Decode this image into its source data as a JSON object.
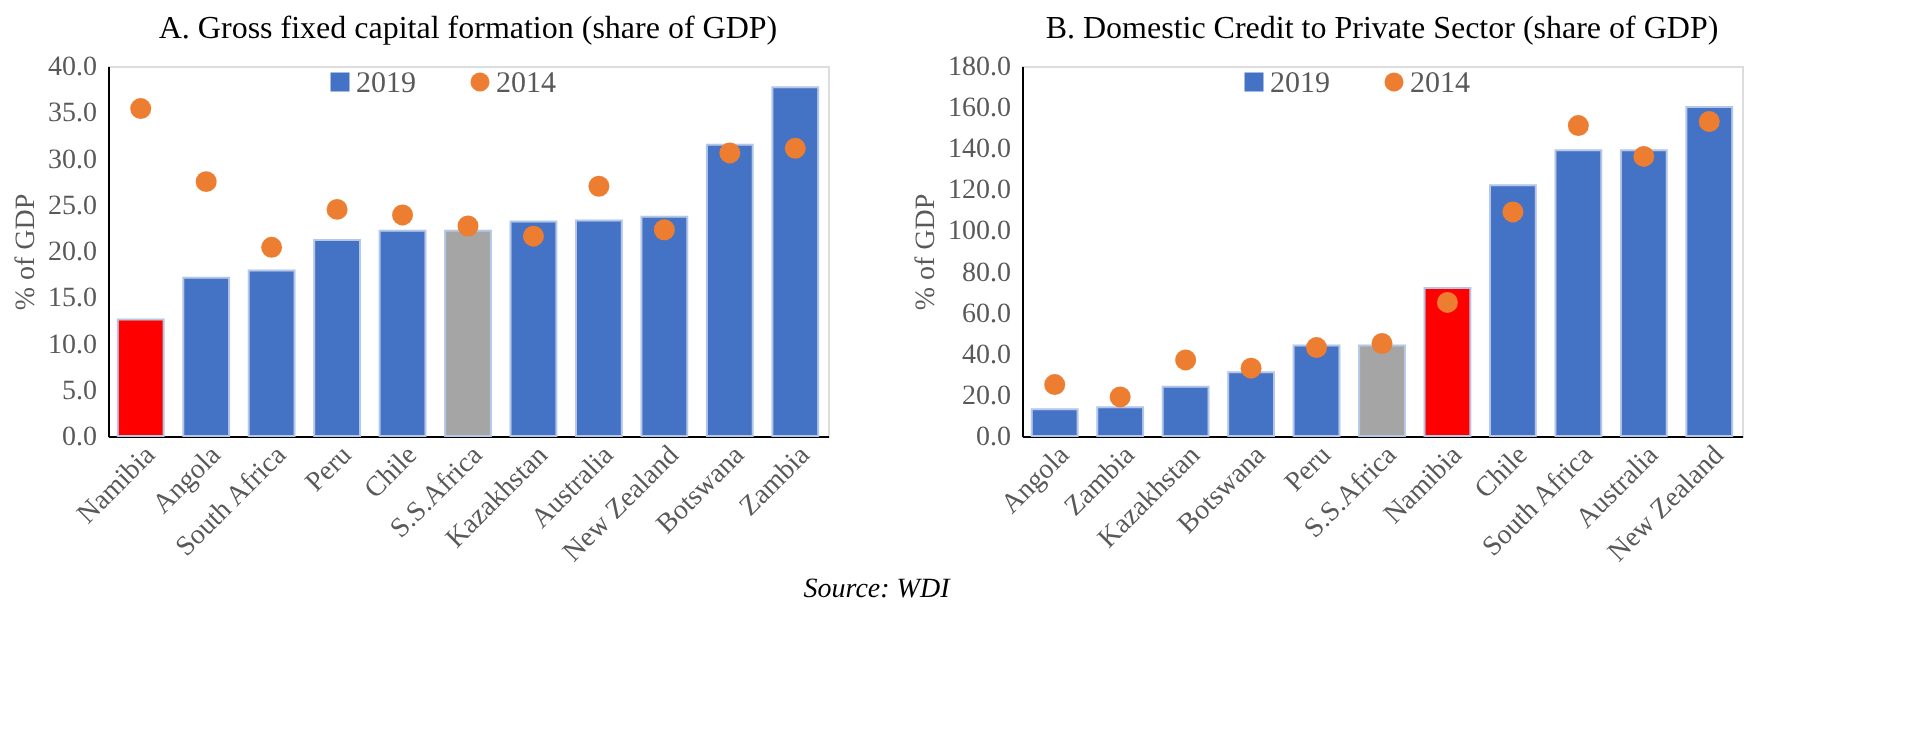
{
  "chart_data": [
    {
      "type": "bar",
      "title": "A.    Gross fixed capital formation (share of GDP)",
      "ylabel": "% of GDP",
      "categories": [
        "Namibia",
        "Angola",
        "South Africa",
        "Peru",
        "Chile",
        "S.S.Africa",
        "Kazakhstan",
        "Australia",
        "New Zealand",
        "Botswana",
        "Zambia"
      ],
      "series": [
        {
          "name": "2019",
          "color": "#4472c4",
          "colors": [
            "#ff0000",
            "#4472c4",
            "#4472c4",
            "#4472c4",
            "#4472c4",
            "#a5a5a5",
            "#4472c4",
            "#4472c4",
            "#4472c4",
            "#4472c4",
            "#4472c4"
          ],
          "values": [
            12.6,
            17.1,
            17.9,
            21.2,
            22.2,
            22.2,
            23.2,
            23.3,
            23.7,
            31.5,
            37.7
          ]
        },
        {
          "name": "2014",
          "type": "scatter",
          "color": "#ed7d31",
          "values": [
            35.4,
            27.5,
            20.4,
            24.5,
            23.9,
            22.7,
            21.6,
            27.0,
            22.3,
            30.6,
            31.1
          ]
        }
      ],
      "ylim": [
        0,
        40
      ],
      "yticks": [
        {
          "value": 0,
          "label": "0.0"
        },
        {
          "value": 5,
          "label": "5.0"
        },
        {
          "value": 10,
          "label": "10.0"
        },
        {
          "value": 15,
          "label": "15.0"
        },
        {
          "value": 20,
          "label": "20.0"
        },
        {
          "value": 25,
          "label": "25.0"
        },
        {
          "value": 30,
          "label": "30.0"
        },
        {
          "value": 35,
          "label": "35.0"
        },
        {
          "value": 40,
          "label": "40.0"
        }
      ],
      "legend": "top",
      "grid": false,
      "annotations": [
        "Source: WDI"
      ]
    },
    {
      "type": "bar",
      "title": "B. Domestic Credit to Private Sector (share of GDP)",
      "ylabel": "% of GDP",
      "categories": [
        "Angola",
        "Zambia",
        "Kazakhstan",
        "Botswana",
        "Peru",
        "S.S.Africa",
        "Namibia",
        "Chile",
        "South Africa",
        "Australia",
        "New Zealand"
      ],
      "series": [
        {
          "name": "2019",
          "color": "#4472c4",
          "colors": [
            "#4472c4",
            "#4472c4",
            "#4472c4",
            "#4472c4",
            "#4472c4",
            "#a5a5a5",
            "#ff0000",
            "#4472c4",
            "#4472c4",
            "#4472c4",
            "#4472c4"
          ],
          "values": [
            13,
            14,
            24,
            31,
            44,
            44,
            72,
            122,
            139,
            139,
            160
          ]
        },
        {
          "name": "2014",
          "type": "scatter",
          "color": "#ed7d31",
          "values": [
            25,
            19,
            37,
            33,
            43,
            45,
            65,
            109,
            151,
            136,
            153
          ]
        }
      ],
      "ylim": [
        0,
        180
      ],
      "yticks": [
        {
          "value": 0,
          "label": "0.0"
        },
        {
          "value": 20,
          "label": "20.0"
        },
        {
          "value": 40,
          "label": "40.0"
        },
        {
          "value": 60,
          "label": "60.0"
        },
        {
          "value": 80,
          "label": "80.0"
        },
        {
          "value": 100,
          "label": "100.0"
        },
        {
          "value": 120,
          "label": "120.0"
        },
        {
          "value": 140,
          "label": "140.0"
        },
        {
          "value": 160,
          "label": "160.0"
        },
        {
          "value": 180,
          "label": "180.0"
        }
      ],
      "legend": "top",
      "grid": false
    }
  ]
}
